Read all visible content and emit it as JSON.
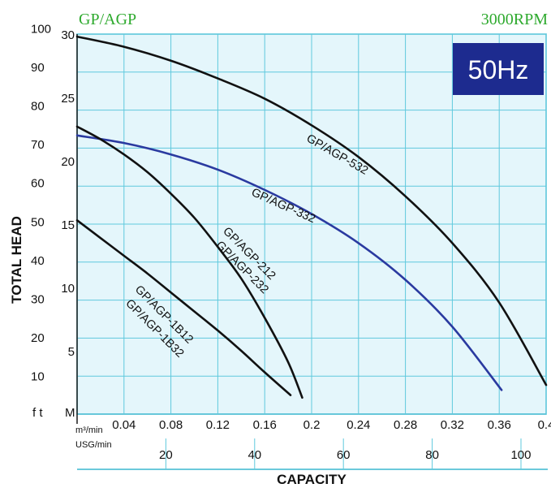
{
  "header": {
    "series_title": "GP/AGP",
    "speed": "3000RPM",
    "frequency_badge": "50Hz"
  },
  "chart_data": {
    "type": "line",
    "xlabel": "CAPACITY",
    "ylabel": "TOTAL HEAD",
    "x_primary": {
      "unit_label": "m³/min",
      "range": [
        0,
        0.4
      ],
      "ticks": [
        "0.04",
        "0.08",
        "0.12",
        "0.16",
        "0.2",
        "0.24",
        "0.28",
        "0.32",
        "0.36",
        "0.4"
      ]
    },
    "x_secondary": {
      "unit_label": "USG/min",
      "ticks": [
        "20",
        "40",
        "60",
        "80",
        "100"
      ]
    },
    "y_primary": {
      "unit_label": "M",
      "range": [
        0,
        30
      ],
      "ticks": [
        "5",
        "10",
        "15",
        "20",
        "25",
        "30"
      ]
    },
    "y_secondary": {
      "unit_label": "f t",
      "ticks": [
        "10",
        "20",
        "30",
        "40",
        "50",
        "60",
        "70",
        "80",
        "90",
        "100"
      ]
    },
    "grid": true,
    "series": [
      {
        "name": "GP/AGP-532",
        "color": "#111111",
        "label_pos": [
          0.195,
          21.6
        ],
        "label_angle": 30,
        "x": [
          0.0,
          0.04,
          0.08,
          0.12,
          0.16,
          0.2,
          0.24,
          0.28,
          0.32,
          0.36,
          0.4
        ],
        "y": [
          29.8,
          29.0,
          27.9,
          26.5,
          24.9,
          22.8,
          20.3,
          17.2,
          13.5,
          8.8,
          2.3
        ]
      },
      {
        "name": "GP/AGP-332",
        "color": "#2a3aa0",
        "label_pos": [
          0.148,
          17.3
        ],
        "label_angle": 24,
        "x": [
          0.0,
          0.04,
          0.08,
          0.12,
          0.16,
          0.2,
          0.24,
          0.28,
          0.32,
          0.362
        ],
        "y": [
          22.0,
          21.4,
          20.5,
          19.3,
          17.7,
          15.8,
          13.5,
          10.6,
          6.9,
          1.9
        ]
      },
      {
        "name": "GP/AGP-212",
        "color": "#111111",
        "label_pos": [
          0.124,
          14.4
        ],
        "label_angle": 45,
        "x": [
          0.0,
          0.02,
          0.04,
          0.06,
          0.08,
          0.1,
          0.12,
          0.14,
          0.16,
          0.18,
          0.192
        ],
        "y": [
          22.7,
          21.7,
          20.5,
          19.1,
          17.4,
          15.5,
          13.2,
          10.7,
          7.6,
          4.1,
          1.3
        ]
      },
      {
        "name": "GP/AGP-232",
        "color": "#111111",
        "label_pos": [
          0.118,
          13.3
        ],
        "label_angle": 45,
        "x": [],
        "y": []
      },
      {
        "name": "GP/AGP-1B12",
        "color": "#111111",
        "label_pos": [
          0.049,
          9.8
        ],
        "label_angle": 45,
        "x": [
          0.0,
          0.02,
          0.04,
          0.06,
          0.08,
          0.1,
          0.12,
          0.14,
          0.16,
          0.182
        ],
        "y": [
          15.3,
          13.9,
          12.5,
          11.1,
          9.6,
          8.1,
          6.6,
          5.0,
          3.3,
          1.5
        ]
      },
      {
        "name": "GP/AGP-1B32",
        "color": "#111111",
        "label_pos": [
          0.041,
          8.7
        ],
        "label_angle": 45,
        "x": [],
        "y": []
      }
    ],
    "badge_color": "#1d2b8f",
    "brand_color": "#2eaa2e"
  }
}
